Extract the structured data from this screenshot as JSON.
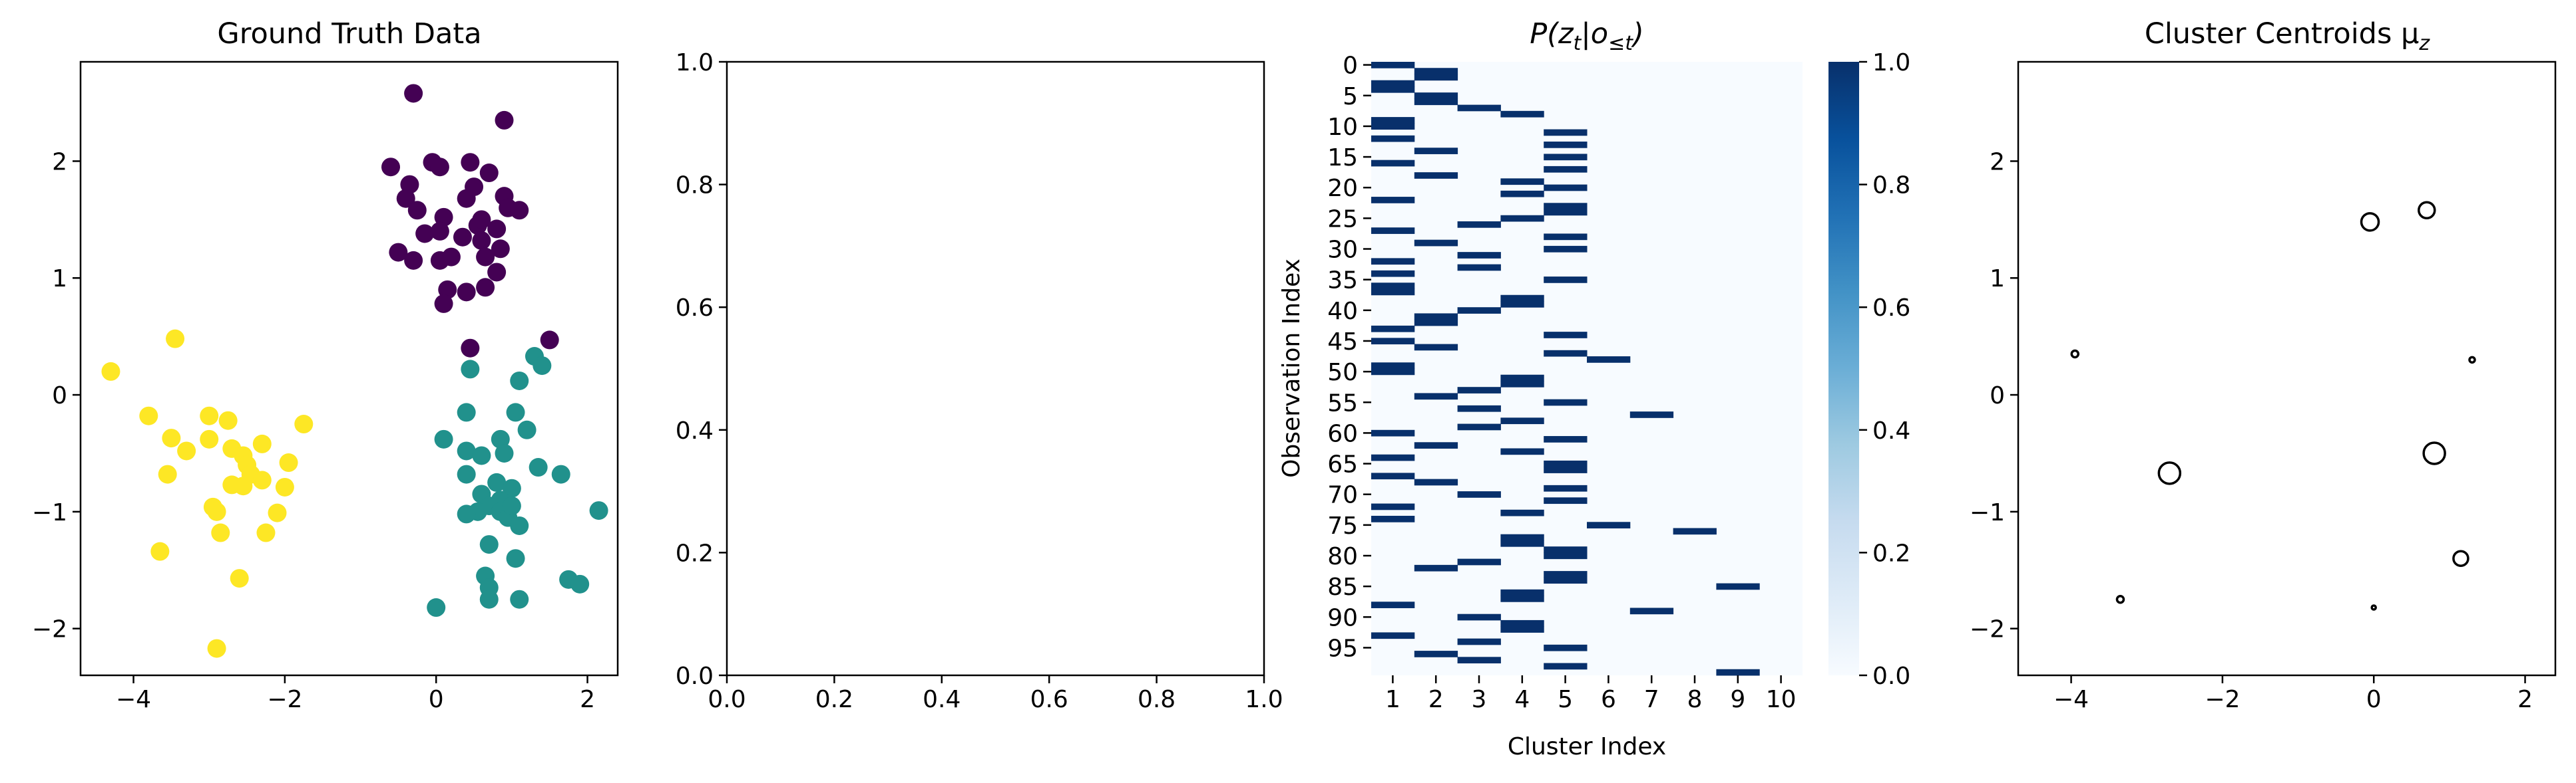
{
  "figure": {
    "panels": [
      {
        "id": "ground-truth",
        "title": "Ground Truth Data",
        "xticks": [
          "−4",
          "−2",
          "0",
          "2"
        ],
        "yticks": [
          "−2",
          "−1",
          "0",
          "1",
          "2"
        ]
      },
      {
        "id": "empty",
        "title": "",
        "xticks": [
          "0.0",
          "0.2",
          "0.4",
          "0.6",
          "0.8",
          "1.0"
        ],
        "yticks": [
          "0.0",
          "0.2",
          "0.4",
          "0.6",
          "0.8",
          "1.0"
        ]
      },
      {
        "id": "posterior",
        "title_main": "P(z",
        "title_sub1": "t",
        "title_mid": "|o",
        "title_sub2": "≤t",
        "title_end": ")",
        "xlabel": "Cluster Index",
        "ylabel": "Observation Index",
        "xticks": [
          "1",
          "2",
          "3",
          "4",
          "5",
          "6",
          "7",
          "8",
          "9",
          "10"
        ],
        "yticks": [
          "0",
          "5",
          "10",
          "15",
          "20",
          "25",
          "30",
          "35",
          "40",
          "45",
          "50",
          "55",
          "60",
          "65",
          "70",
          "75",
          "80",
          "85",
          "90",
          "95"
        ],
        "colorbar_ticks": [
          "0.0",
          "0.2",
          "0.4",
          "0.6",
          "0.8",
          "1.0"
        ]
      },
      {
        "id": "centroids",
        "title_main": "Cluster Centroids μ",
        "title_sub": "z",
        "xticks": [
          "−4",
          "−2",
          "0",
          "2"
        ],
        "yticks": [
          "−2",
          "−1",
          "0",
          "1",
          "2"
        ]
      }
    ]
  },
  "chart_data": [
    {
      "type": "scatter",
      "title": "Ground Truth Data",
      "xlim": [
        -4.7,
        2.4
      ],
      "ylim": [
        -2.4,
        2.85
      ],
      "colors": {
        "cluster_0": "#440154",
        "cluster_1": "#21918c",
        "cluster_2": "#fde725"
      },
      "series": [
        {
          "cluster": "cluster_0",
          "points": [
            [
              -0.3,
              2.58
            ],
            [
              0.9,
              2.35
            ],
            [
              -0.6,
              1.95
            ],
            [
              -0.05,
              1.99
            ],
            [
              0.05,
              1.95
            ],
            [
              0.45,
              1.99
            ],
            [
              0.7,
              1.9
            ],
            [
              -0.35,
              1.8
            ],
            [
              0.5,
              1.78
            ],
            [
              -0.4,
              1.68
            ],
            [
              -0.25,
              1.58
            ],
            [
              0.4,
              1.68
            ],
            [
              0.9,
              1.7
            ],
            [
              0.95,
              1.6
            ],
            [
              1.1,
              1.58
            ],
            [
              0.1,
              1.52
            ],
            [
              0.55,
              1.45
            ],
            [
              0.6,
              1.5
            ],
            [
              0.8,
              1.42
            ],
            [
              -0.15,
              1.38
            ],
            [
              0.05,
              1.4
            ],
            [
              0.35,
              1.35
            ],
            [
              0.6,
              1.32
            ],
            [
              0.85,
              1.25
            ],
            [
              -0.5,
              1.22
            ],
            [
              -0.3,
              1.15
            ],
            [
              0.05,
              1.15
            ],
            [
              0.2,
              1.18
            ],
            [
              0.65,
              1.18
            ],
            [
              0.8,
              1.05
            ],
            [
              0.15,
              0.9
            ],
            [
              0.4,
              0.88
            ],
            [
              0.65,
              0.92
            ],
            [
              0.1,
              0.78
            ],
            [
              0.45,
              0.4
            ],
            [
              1.5,
              0.47
            ]
          ]
        },
        {
          "cluster": "cluster_1",
          "points": [
            [
              1.3,
              0.33
            ],
            [
              1.4,
              0.25
            ],
            [
              0.45,
              0.22
            ],
            [
              1.1,
              0.12
            ],
            [
              0.4,
              -0.15
            ],
            [
              1.05,
              -0.15
            ],
            [
              1.2,
              -0.3
            ],
            [
              0.1,
              -0.38
            ],
            [
              0.85,
              -0.38
            ],
            [
              0.4,
              -0.48
            ],
            [
              0.6,
              -0.52
            ],
            [
              0.9,
              -0.5
            ],
            [
              1.35,
              -0.62
            ],
            [
              1.65,
              -0.68
            ],
            [
              0.4,
              -0.68
            ],
            [
              0.8,
              -0.75
            ],
            [
              1.0,
              -0.8
            ],
            [
              0.6,
              -0.85
            ],
            [
              0.85,
              -0.9
            ],
            [
              0.7,
              -0.95
            ],
            [
              0.55,
              -1.0
            ],
            [
              0.85,
              -1.0
            ],
            [
              0.95,
              -1.05
            ],
            [
              1.0,
              -0.95
            ],
            [
              0.4,
              -1.02
            ],
            [
              2.15,
              -0.99
            ],
            [
              1.1,
              -1.12
            ],
            [
              0.7,
              -1.28
            ],
            [
              1.05,
              -1.4
            ],
            [
              0.65,
              -1.55
            ],
            [
              0.7,
              -1.65
            ],
            [
              1.75,
              -1.58
            ],
            [
              1.9,
              -1.62
            ],
            [
              0.7,
              -1.75
            ],
            [
              1.1,
              -1.75
            ],
            [
              0.0,
              -1.82
            ]
          ]
        },
        {
          "cluster": "cluster_2",
          "points": [
            [
              -3.45,
              0.48
            ],
            [
              -4.3,
              0.2
            ],
            [
              -3.8,
              -0.18
            ],
            [
              -3.0,
              -0.18
            ],
            [
              -2.75,
              -0.22
            ],
            [
              -1.75,
              -0.25
            ],
            [
              -3.5,
              -0.37
            ],
            [
              -3.0,
              -0.38
            ],
            [
              -2.3,
              -0.42
            ],
            [
              -3.3,
              -0.48
            ],
            [
              -2.7,
              -0.46
            ],
            [
              -2.55,
              -0.52
            ],
            [
              -1.95,
              -0.58
            ],
            [
              -2.5,
              -0.6
            ],
            [
              -3.55,
              -0.68
            ],
            [
              -2.45,
              -0.68
            ],
            [
              -2.3,
              -0.73
            ],
            [
              -2.7,
              -0.77
            ],
            [
              -2.55,
              -0.78
            ],
            [
              -2.0,
              -0.79
            ],
            [
              -2.95,
              -0.96
            ],
            [
              -2.9,
              -1.0
            ],
            [
              -2.1,
              -1.01
            ],
            [
              -2.85,
              -1.18
            ],
            [
              -2.25,
              -1.18
            ],
            [
              -3.65,
              -1.34
            ],
            [
              -2.6,
              -1.57
            ],
            [
              -2.9,
              -2.17
            ]
          ]
        }
      ]
    },
    {
      "type": "scatter",
      "title": "",
      "xlim": [
        0,
        1
      ],
      "ylim": [
        0,
        1
      ],
      "series": []
    },
    {
      "type": "heatmap",
      "title": "P(z_t|o_≤t)",
      "xlabel": "Cluster Index",
      "ylabel": "Observation Index",
      "n_rows": 100,
      "n_cols": 10,
      "colormap": "Blues",
      "vmin": 0,
      "vmax": 1,
      "active_cells": [
        [
          0,
          0
        ],
        [
          1,
          1
        ],
        [
          2,
          1
        ],
        [
          3,
          0
        ],
        [
          4,
          0
        ],
        [
          5,
          1
        ],
        [
          6,
          1
        ],
        [
          7,
          2
        ],
        [
          8,
          3
        ],
        [
          9,
          0
        ],
        [
          10,
          0
        ],
        [
          11,
          4
        ],
        [
          12,
          0
        ],
        [
          13,
          4
        ],
        [
          14,
          1
        ],
        [
          15,
          4
        ],
        [
          16,
          0
        ],
        [
          17,
          4
        ],
        [
          18,
          1
        ],
        [
          19,
          3
        ],
        [
          20,
          4
        ],
        [
          21,
          3
        ],
        [
          22,
          0
        ],
        [
          23,
          4
        ],
        [
          24,
          4
        ],
        [
          25,
          3
        ],
        [
          26,
          2
        ],
        [
          27,
          0
        ],
        [
          28,
          4
        ],
        [
          29,
          1
        ],
        [
          30,
          4
        ],
        [
          31,
          2
        ],
        [
          32,
          0
        ],
        [
          33,
          2
        ],
        [
          34,
          0
        ],
        [
          35,
          4
        ],
        [
          36,
          0
        ],
        [
          37,
          0
        ],
        [
          38,
          3
        ],
        [
          39,
          3
        ],
        [
          40,
          2
        ],
        [
          41,
          1
        ],
        [
          42,
          1
        ],
        [
          43,
          0
        ],
        [
          44,
          4
        ],
        [
          45,
          0
        ],
        [
          46,
          1
        ],
        [
          47,
          4
        ],
        [
          48,
          5
        ],
        [
          49,
          0
        ],
        [
          50,
          0
        ],
        [
          51,
          3
        ],
        [
          52,
          3
        ],
        [
          53,
          2
        ],
        [
          54,
          1
        ],
        [
          55,
          4
        ],
        [
          56,
          2
        ],
        [
          57,
          6
        ],
        [
          58,
          3
        ],
        [
          59,
          2
        ],
        [
          60,
          0
        ],
        [
          61,
          4
        ],
        [
          62,
          1
        ],
        [
          63,
          3
        ],
        [
          64,
          0
        ],
        [
          65,
          4
        ],
        [
          66,
          4
        ],
        [
          67,
          0
        ],
        [
          68,
          1
        ],
        [
          69,
          4
        ],
        [
          70,
          2
        ],
        [
          71,
          4
        ],
        [
          72,
          0
        ],
        [
          73,
          3
        ],
        [
          74,
          0
        ],
        [
          75,
          5
        ],
        [
          76,
          7
        ],
        [
          77,
          3
        ],
        [
          78,
          3
        ],
        [
          79,
          4
        ],
        [
          80,
          4
        ],
        [
          81,
          2
        ],
        [
          82,
          1
        ],
        [
          83,
          4
        ],
        [
          84,
          4
        ],
        [
          85,
          8
        ],
        [
          86,
          3
        ],
        [
          87,
          3
        ],
        [
          88,
          0
        ],
        [
          89,
          6
        ],
        [
          90,
          2
        ],
        [
          91,
          3
        ],
        [
          92,
          3
        ],
        [
          93,
          0
        ],
        [
          94,
          2
        ],
        [
          95,
          4
        ],
        [
          96,
          1
        ],
        [
          97,
          2
        ],
        [
          98,
          4
        ],
        [
          99,
          8
        ]
      ]
    },
    {
      "type": "scatter",
      "title": "Cluster Centroids μ_z",
      "xlim": [
        -4.7,
        2.4
      ],
      "ylim": [
        -2.4,
        2.85
      ],
      "marker": "hollow-circle",
      "points": [
        {
          "x": -0.05,
          "y": 1.48,
          "size": 13
        },
        {
          "x": 0.7,
          "y": 1.58,
          "size": 12
        },
        {
          "x": -3.95,
          "y": 0.35,
          "size": 5
        },
        {
          "x": 1.3,
          "y": 0.3,
          "size": 4
        },
        {
          "x": -2.7,
          "y": -0.67,
          "size": 16
        },
        {
          "x": 0.8,
          "y": -0.5,
          "size": 16
        },
        {
          "x": 1.15,
          "y": -1.4,
          "size": 11
        },
        {
          "x": -3.35,
          "y": -1.75,
          "size": 5
        },
        {
          "x": 0.0,
          "y": -1.82,
          "size": 3
        }
      ]
    }
  ]
}
